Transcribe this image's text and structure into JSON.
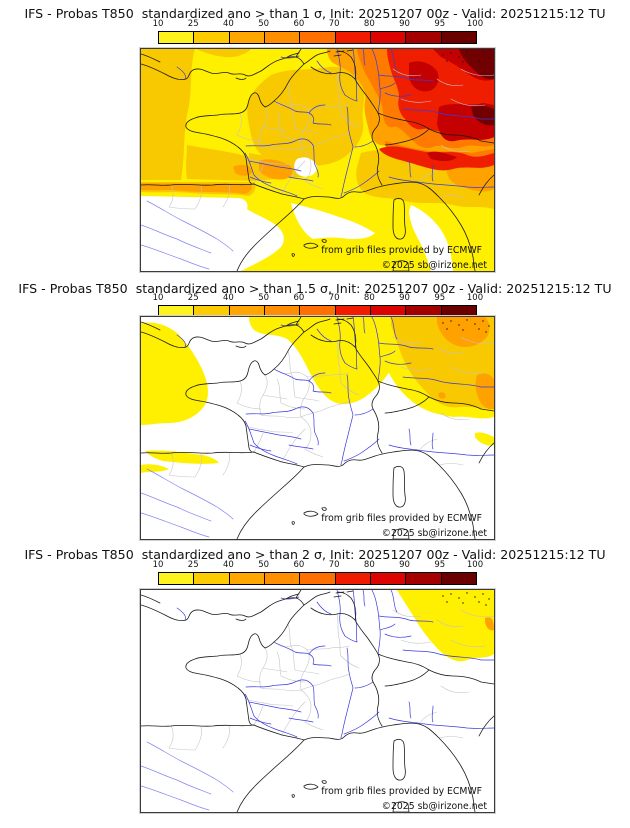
{
  "panels": [
    {
      "title": "IFS - Probas T850  standardized ano > than 1 σ, Init: 20251207 00z - Valid: 20251215:12 TU"
    },
    {
      "title": "IFS - Probas T850  standardized ano > than 1.5 σ, Init: 20251207 00z - Valid: 20251215:12 TU"
    },
    {
      "title": "IFS - Probas T850  standardized ano > than 2 σ, Init: 20251207 00z - Valid: 20251215:12 TU"
    }
  ],
  "colorbar": {
    "tick_labels": [
      "10",
      "25",
      "40",
      "50",
      "60",
      "70",
      "80",
      "90",
      "95",
      "100"
    ],
    "segment_colors": [
      "#FFF31E",
      "#FCCB00",
      "#FFA600",
      "#FF8F00",
      "#FF7000",
      "#F01C00",
      "#DC0400",
      "#A50000",
      "#6B0000"
    ]
  },
  "map": {
    "attribution_line1": "from grib files provided by ECMWF",
    "attribution_line2": "©2025 sb@irizone.net"
  },
  "map_palette": {
    "yellow": "#FFEF00",
    "gold": "#F8C800",
    "orange": "#FFA200",
    "deep_orange": "#FF7A00",
    "red": "#EF1E00",
    "dark_red": "#C40000",
    "maroon": "#730000",
    "white": "#FFFFFF"
  }
}
